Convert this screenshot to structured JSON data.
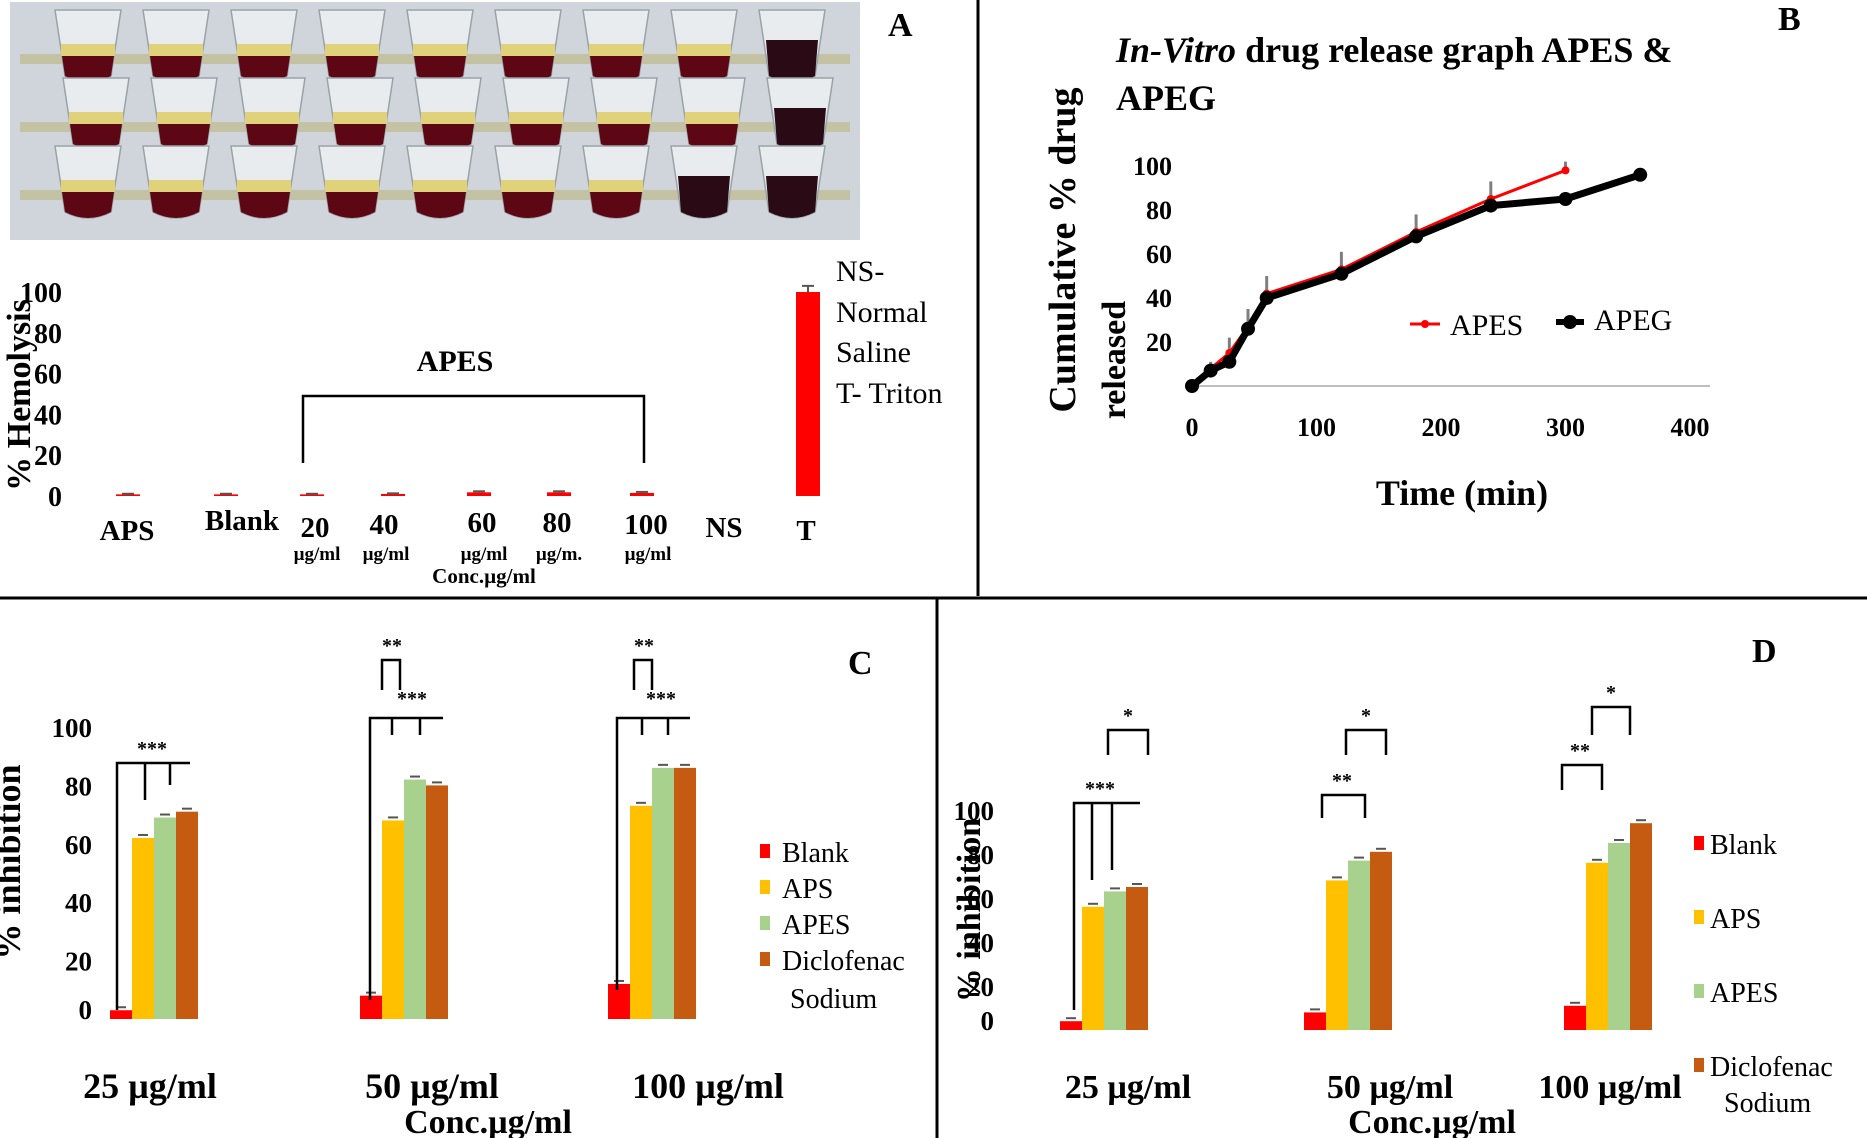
{
  "figure": {
    "panels": {
      "A": {
        "letter": "A",
        "photo_label": "Hemolysis assay tubes"
      },
      "B": {
        "letter": "B"
      },
      "C": {
        "letter": "C"
      },
      "D": {
        "letter": "D"
      }
    }
  },
  "chart_data": [
    {
      "id": "A",
      "type": "bar",
      "title": "",
      "ylabel": "% Hemolysis",
      "xlabel": "Conc.µg/ml",
      "ylim": [
        0,
        100
      ],
      "yticks": [
        "0",
        "20",
        "40",
        "60",
        "80",
        "100"
      ],
      "categories": [
        "APS",
        "Blank",
        "20",
        "40",
        "60",
        "80",
        "100",
        "NS",
        "T"
      ],
      "sublabels": [
        "",
        "",
        "µg/ml",
        "µg/ml",
        "µg/ml",
        "µg/m.",
        "µg/ml",
        "",
        ""
      ],
      "values": [
        0.8,
        0.8,
        0.8,
        1.0,
        1.8,
        1.8,
        1.5,
        0,
        100
      ],
      "errors": [
        0.3,
        0.3,
        0.3,
        0.3,
        0.5,
        0.5,
        0.5,
        0,
        3
      ],
      "color": "#ff0000",
      "bracket_label": "APES",
      "notes": [
        "NS-",
        "Normal",
        "Saline",
        "T- Triton"
      ]
    },
    {
      "id": "B",
      "type": "line",
      "title_italic": "In-Vitro",
      "title_rest": " drug release graph APES &",
      "title_line2": "APEG",
      "xlabel": "Time (min)",
      "ylabel_line1": "Cumulative % drug",
      "ylabel_line2": "released",
      "xlim": [
        0,
        400
      ],
      "ylim": [
        0,
        100
      ],
      "xticks": [
        "0",
        "100",
        "200",
        "300",
        "400"
      ],
      "yticks": [
        "20",
        "40",
        "60",
        "80",
        "100"
      ],
      "series": [
        {
          "name": "APES",
          "color": "#ff0000",
          "x": [
            0,
            15,
            30,
            45,
            60,
            120,
            180,
            240,
            300
          ],
          "y": [
            0,
            8,
            15,
            27,
            42,
            53,
            70,
            85,
            98
          ],
          "err": [
            0,
            3,
            7,
            8,
            8,
            8,
            8,
            8,
            4
          ]
        },
        {
          "name": "APEG",
          "color": "#000000",
          "x": [
            0,
            15,
            30,
            45,
            60,
            120,
            180,
            240,
            300,
            360
          ],
          "y": [
            0,
            7,
            11,
            26,
            40,
            51,
            68,
            82,
            85,
            96
          ],
          "err": [
            0,
            0,
            0,
            0,
            0,
            0,
            0,
            0,
            0,
            0
          ]
        }
      ]
    },
    {
      "id": "C",
      "type": "bar",
      "ylabel": "% inhibition",
      "xlabel": "Conc.µg/ml",
      "ylim": [
        0,
        100
      ],
      "yticks": [
        "0",
        "20",
        "40",
        "60",
        "80",
        "100"
      ],
      "categories": [
        "25 µg/ml",
        "50 µg/ml",
        "100 µg/ml"
      ],
      "series": [
        {
          "name": "Blank",
          "color": "#ff0000",
          "values": [
            3,
            8,
            12
          ]
        },
        {
          "name": "APS",
          "color": "#ffc000",
          "values": [
            62,
            68,
            73
          ]
        },
        {
          "name": "APES",
          "color": "#a9d18e",
          "values": [
            69,
            82,
            86
          ]
        },
        {
          "name": "Diclofenac Sodium",
          "color": "#c55a11",
          "values": [
            71,
            80,
            86
          ]
        }
      ],
      "legend": [
        "Blank",
        "APS",
        "APES",
        "Diclofenac",
        "Sodium"
      ],
      "significance": [
        "***",
        "**",
        "***",
        "**",
        "***"
      ]
    },
    {
      "id": "D",
      "type": "bar",
      "ylabel": "% inhibition",
      "xlabel": "Conc.µg/ml",
      "ylim": [
        0,
        100
      ],
      "yticks": [
        "0",
        "20",
        "40",
        "60",
        "80",
        "100"
      ],
      "categories": [
        "25 µg/ml",
        "50 µg/ml",
        "100 µg/ml"
      ],
      "series": [
        {
          "name": "Blank",
          "color": "#ff0000",
          "values": [
            4,
            8,
            11
          ]
        },
        {
          "name": "APS",
          "color": "#ffc000",
          "values": [
            56,
            68,
            76
          ]
        },
        {
          "name": "APES",
          "color": "#a9d18e",
          "values": [
            63,
            77,
            85
          ]
        },
        {
          "name": "Diclofenac Sodium",
          "color": "#c55a11",
          "values": [
            65,
            81,
            94
          ]
        }
      ],
      "legend": [
        "Blank",
        "APS",
        "APES",
        "Diclofenac",
        "Sodium"
      ],
      "significance": [
        "*",
        "***",
        "*",
        "**",
        "*",
        "**"
      ]
    }
  ]
}
